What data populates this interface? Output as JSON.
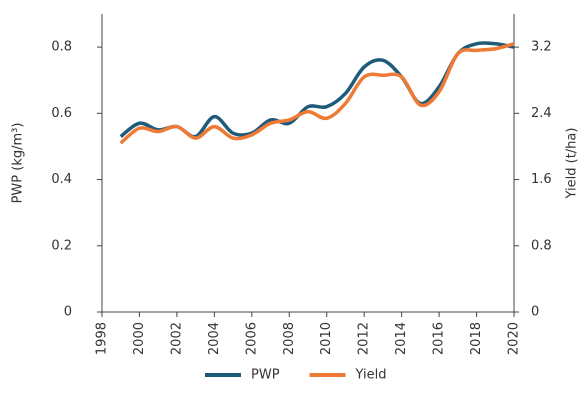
{
  "chart_data": {
    "type": "line",
    "y_label": "PWP (kg/m³)",
    "y2_label": "Yield (t/ha)",
    "x": [
      1999,
      2000,
      2001,
      2002,
      2003,
      2004,
      2005,
      2006,
      2007,
      2008,
      2009,
      2010,
      2011,
      2012,
      2013,
      2014,
      2015,
      2016,
      2017,
      2018,
      2019,
      2020
    ],
    "xlim": [
      1998,
      2020
    ],
    "xticks": [
      1998,
      2000,
      2002,
      2004,
      2006,
      2008,
      2010,
      2012,
      2014,
      2016,
      2018,
      2020
    ],
    "ylim": [
      0,
      0.9
    ],
    "yticks": [
      0,
      0.2,
      0.4,
      0.6,
      0.8
    ],
    "y2lim": [
      0,
      3.6
    ],
    "y2ticks": [
      0,
      0.8,
      1.6,
      2.4,
      3.2
    ],
    "legend": "bottom",
    "series": [
      {
        "name": "PWP",
        "color": "#1e5b7a",
        "values": [
          0.53,
          0.57,
          0.55,
          0.56,
          0.53,
          0.59,
          0.54,
          0.54,
          0.58,
          0.57,
          0.62,
          0.62,
          0.66,
          0.74,
          0.76,
          0.71,
          0.63,
          0.68,
          0.78,
          0.81,
          0.81,
          0.8
        ]
      },
      {
        "name": "Yield",
        "color": "#ef7a36",
        "axis": "y2",
        "values": [
          2.04,
          2.22,
          2.18,
          2.24,
          2.1,
          2.24,
          2.1,
          2.14,
          2.28,
          2.32,
          2.42,
          2.34,
          2.52,
          2.84,
          2.86,
          2.84,
          2.5,
          2.66,
          3.12,
          3.16,
          3.18,
          3.24
        ]
      }
    ]
  }
}
